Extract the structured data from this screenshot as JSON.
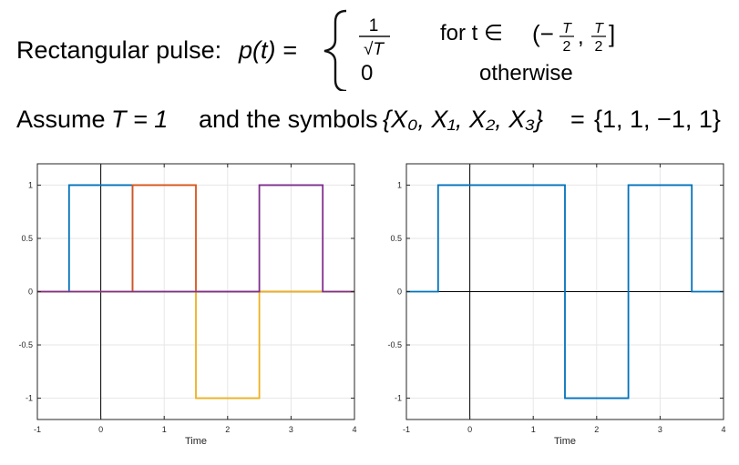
{
  "equation": {
    "label": "Rectangular pulse:",
    "lhs": "p(t) =",
    "case1_num": "1",
    "case1_den": "√T",
    "case1_cond_prefix": "for t ∈",
    "case1_interval_open": "(−",
    "case1_interval_close": "]",
    "frac_num": "T",
    "frac_den": "2",
    "case2_value": "0",
    "case2_cond": "otherwise"
  },
  "assumption": {
    "text_prefix": "Assume",
    "T_eq": "T = 1",
    "text_mid": "and the symbols",
    "symbols_lhs": "{X₀, X₁, X₂, X₃}",
    "eq": "=",
    "symbols_rhs": "{1, 1, −1, 1}"
  },
  "colors": {
    "blue": "#0072BD",
    "orange": "#D95319",
    "yellow": "#EDB120",
    "purple": "#7E2F8E",
    "grid": "#e6e6e6",
    "axis": "#000000"
  },
  "chart_data": [
    {
      "type": "line",
      "title": "",
      "xlabel": "Time",
      "ylabel": "",
      "xlim": [
        -1,
        4
      ],
      "ylim": [
        -1.2,
        1.2
      ],
      "xticks": [
        "-1",
        "0",
        "1",
        "2",
        "3",
        "4"
      ],
      "yticks": [
        "-1",
        "-0.5",
        "0",
        "0.5",
        "1"
      ],
      "grid": true,
      "series": [
        {
          "color": "blue",
          "x": [
            -1,
            -0.5,
            -0.5,
            0.5,
            0.5,
            4
          ],
          "y": [
            0,
            0,
            1,
            1,
            0,
            0
          ]
        },
        {
          "color": "orange",
          "x": [
            -1,
            0.5,
            0.5,
            1.5,
            1.5,
            4
          ],
          "y": [
            0,
            0,
            1,
            1,
            0,
            0
          ]
        },
        {
          "color": "yellow",
          "x": [
            -1,
            1.5,
            1.5,
            2.5,
            2.5,
            4
          ],
          "y": [
            0,
            0,
            -1,
            -1,
            0,
            0
          ]
        },
        {
          "color": "purple",
          "x": [
            -1,
            2.5,
            2.5,
            3.5,
            3.5,
            4
          ],
          "y": [
            0,
            0,
            1,
            1,
            0,
            0
          ]
        }
      ]
    },
    {
      "type": "line",
      "title": "",
      "xlabel": "Time",
      "ylabel": "",
      "xlim": [
        -1,
        4
      ],
      "ylim": [
        -1.2,
        1.2
      ],
      "xticks": [
        "-1",
        "0",
        "1",
        "2",
        "3",
        "4"
      ],
      "yticks": [
        "-1",
        "-0.5",
        "0",
        "0.5",
        "1"
      ],
      "grid": true,
      "series": [
        {
          "color": "blue",
          "x": [
            -1,
            -0.5,
            -0.5,
            1.5,
            1.5,
            2.5,
            2.5,
            3.5,
            3.5,
            4
          ],
          "y": [
            0,
            0,
            1,
            1,
            -1,
            -1,
            1,
            1,
            0,
            0
          ]
        }
      ]
    }
  ]
}
